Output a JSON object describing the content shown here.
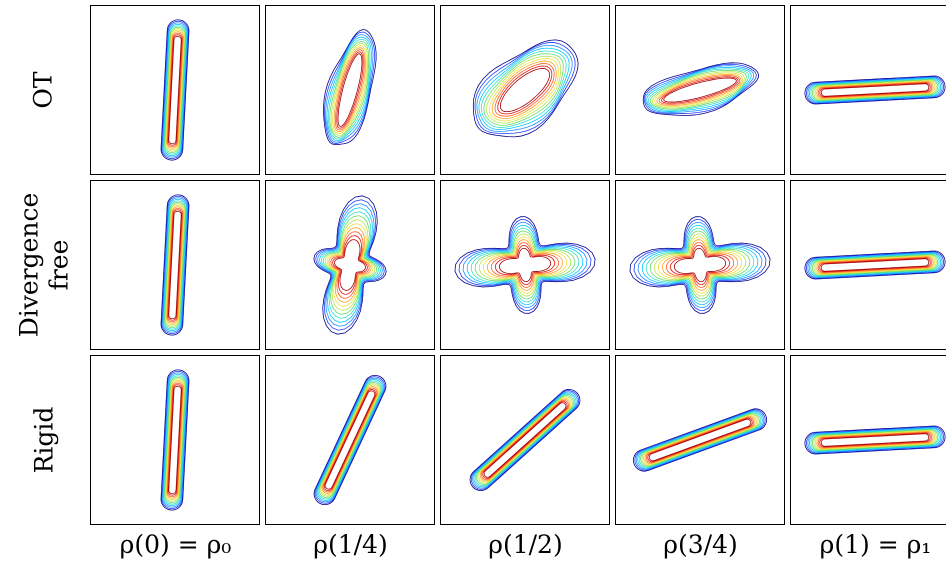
{
  "row_labels": [
    {
      "lines": [
        "OT"
      ]
    },
    {
      "lines": [
        "Divergence",
        "free"
      ]
    },
    {
      "lines": [
        "Rigid"
      ]
    }
  ],
  "column_labels": [
    "ρ(0) = ρ₀",
    "ρ(1/4)",
    "ρ(1/2)",
    "ρ(3/4)",
    "ρ(1) = ρ₁"
  ],
  "contour_colors": [
    "#00008b",
    "#1f3bff",
    "#1e90ff",
    "#00c8ff",
    "#33e0c8",
    "#66d966",
    "#b4e650",
    "#f0e040",
    "#ffa020",
    "#ff5a1e",
    "#e01010",
    "#a00000"
  ],
  "rows": [
    {
      "name": "OT",
      "cells": [
        {
          "shape": "rod",
          "angle": -87
        },
        {
          "shape": "blob",
          "angle": -75
        },
        {
          "shape": "blob",
          "angle": -40
        },
        {
          "shape": "blob",
          "angle": -15
        },
        {
          "shape": "rod",
          "angle": -3
        }
      ]
    },
    {
      "name": "Divergence free",
      "cells": [
        {
          "shape": "rod",
          "angle": -87
        },
        {
          "shape": "cross",
          "angle": -80
        },
        {
          "shape": "cross",
          "angle": -5
        },
        {
          "shape": "cross",
          "angle": -5
        },
        {
          "shape": "rod",
          "angle": -3
        }
      ]
    },
    {
      "name": "Rigid",
      "cells": [
        {
          "shape": "rod",
          "angle": -87
        },
        {
          "shape": "rod",
          "angle": -65
        },
        {
          "shape": "rod",
          "angle": -42
        },
        {
          "shape": "rod",
          "angle": -20
        },
        {
          "shape": "rod",
          "angle": -3
        }
      ]
    }
  ]
}
